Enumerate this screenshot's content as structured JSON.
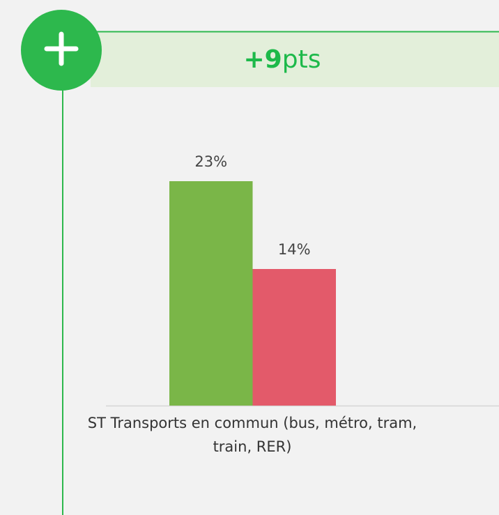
{
  "chart_data": {
    "type": "bar",
    "annotation": {
      "delta": "+9",
      "unit": "pts"
    },
    "categories": [
      "ST Transports en commun (bus, métro, tram, train, RER)"
    ],
    "series": [
      {
        "color": "#7ab648",
        "values": [
          23
        ],
        "value_labels": [
          "23%"
        ]
      },
      {
        "color": "#e35a6a",
        "values": [
          14
        ],
        "value_labels": [
          "14%"
        ]
      }
    ],
    "ylim": [
      0,
      30
    ]
  }
}
